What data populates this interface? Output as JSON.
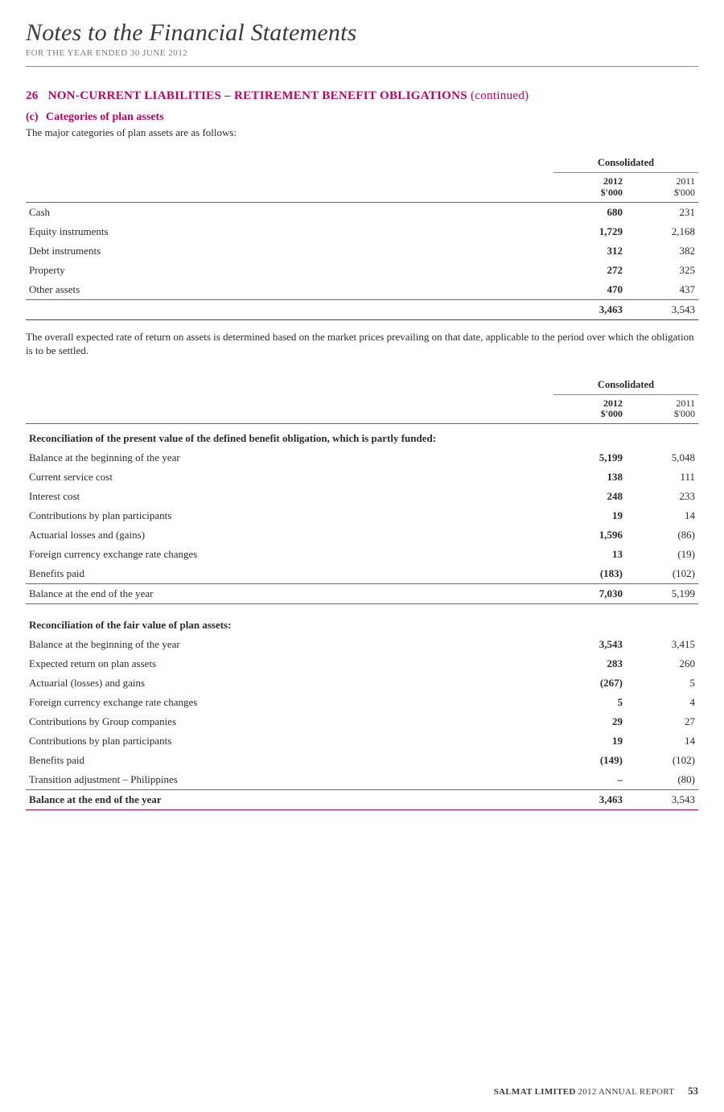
{
  "colors": {
    "accent": "#c4005f",
    "text": "#2a2a2a",
    "muted": "#7a7a7a",
    "rule": "#6a6a6a",
    "background": "#ffffff"
  },
  "header": {
    "title": "Notes to the Financial Statements",
    "subtitle": "FOR THE YEAR ENDED 30 JUNE 2012"
  },
  "section": {
    "number": "26",
    "title": "NON-CURRENT LIABILITIES – RETIREMENT BENEFIT OBLIGATIONS",
    "continued": "(continued)"
  },
  "subsection": {
    "id": "(c)",
    "title": "Categories of plan assets",
    "intro": "The major categories of plan assets are as follows:"
  },
  "consolidated_label": "Consolidated",
  "year_headers": {
    "y2012": "2012",
    "y2011": "2011",
    "unit": "$'000"
  },
  "table1": {
    "rows": [
      {
        "label": "Cash",
        "v2012": "680",
        "v2011": "231"
      },
      {
        "label": "Equity instruments",
        "v2012": "1,729",
        "v2011": "2,168"
      },
      {
        "label": "Debt instruments",
        "v2012": "312",
        "v2011": "382"
      },
      {
        "label": "Property",
        "v2012": "272",
        "v2011": "325"
      },
      {
        "label": "Other assets",
        "v2012": "470",
        "v2011": "437"
      }
    ],
    "total": {
      "label": "",
      "v2012": "3,463",
      "v2011": "3,543"
    }
  },
  "para1": "The overall expected rate of return on assets is determined based on the market prices prevailing on that date, applicable to the period over which the obligation is to be settled.",
  "table2": {
    "section_a_title": "Reconciliation of the present value of the defined benefit obligation, which is partly funded:",
    "section_a_rows": [
      {
        "label": "Balance at the beginning of the year",
        "v2012": "5,199",
        "v2011": "5,048"
      },
      {
        "label": "Current service cost",
        "v2012": "138",
        "v2011": "111"
      },
      {
        "label": "Interest cost",
        "v2012": "248",
        "v2011": "233"
      },
      {
        "label": "Contributions by plan participants",
        "v2012": "19",
        "v2011": "14"
      },
      {
        "label": "Actuarial losses and (gains)",
        "v2012": "1,596",
        "v2011": "(86)"
      },
      {
        "label": "Foreign currency exchange rate changes",
        "v2012": "13",
        "v2011": "(19)"
      },
      {
        "label": "Benefits paid",
        "v2012": "(183)",
        "v2011": "(102)"
      }
    ],
    "section_a_end": {
      "label": "Balance at the end of the year",
      "v2012": "7,030",
      "v2011": "5,199"
    },
    "section_b_title": "Reconciliation of the fair value of plan assets:",
    "section_b_rows": [
      {
        "label": "Balance at the beginning of the year",
        "v2012": "3,543",
        "v2011": "3,415"
      },
      {
        "label": "Expected return on plan assets",
        "v2012": "283",
        "v2011": "260"
      },
      {
        "label": "Actuarial (losses) and gains",
        "v2012": "(267)",
        "v2011": "5"
      },
      {
        "label": "Foreign currency exchange rate changes",
        "v2012": "5",
        "v2011": "4"
      },
      {
        "label": "Contributions by Group companies",
        "v2012": "29",
        "v2011": "27"
      },
      {
        "label": "Contributions by plan participants",
        "v2012": "19",
        "v2011": "14"
      },
      {
        "label": "Benefits paid",
        "v2012": "(149)",
        "v2011": "(102)"
      },
      {
        "label": "Transition adjustment – Philippines",
        "v2012": "–",
        "v2011": "(80)"
      }
    ],
    "section_b_end": {
      "label": "Balance at the end of the year",
      "v2012": "3,463",
      "v2011": "3,543"
    }
  },
  "footer": {
    "company": "SALMAT LIMITED",
    "report": "2012 ANNUAL REPORT",
    "page": "53"
  }
}
